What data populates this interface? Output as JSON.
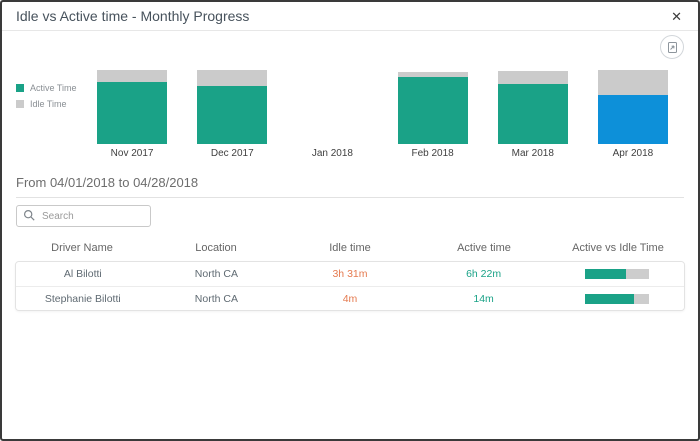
{
  "dialog": {
    "title": "Idle vs Active time - Monthly Progress",
    "close_glyph": "✕"
  },
  "colors": {
    "active_teal": "#1aa287",
    "idle_gray": "#cbcbcb",
    "selected_blue": "#0d90d9",
    "idle_text_orange": "#e57a4f"
  },
  "chart_data": {
    "type": "bar",
    "stacked": true,
    "orientation": "vertical",
    "axis_labels_shown": false,
    "legend_position": "left",
    "categories": [
      "Nov 2017",
      "Dec 2017",
      "Jan 2018",
      "Feb 2018",
      "Mar 2018",
      "Apr 2018"
    ],
    "series": [
      {
        "name": "Active Time",
        "color": "#1aa287",
        "values": [
          62,
          58,
          0,
          67,
          60,
          49
        ]
      },
      {
        "name": "Idle Time",
        "color": "#cbcbcb",
        "values": [
          12,
          16,
          0,
          5,
          13,
          25
        ]
      }
    ],
    "value_unit": "relative-height",
    "highlighted_category": "Apr 2018",
    "highlight_color": "#0d90d9"
  },
  "period": {
    "label": "From 04/01/2018 to 04/28/2018"
  },
  "search": {
    "placeholder": "Search"
  },
  "table": {
    "columns": [
      "Driver Name",
      "Location",
      "Idle time",
      "Active time",
      "Active vs Idle Time"
    ],
    "rows": [
      {
        "driver": "Al Bilotti",
        "location": "North CA",
        "idle": "3h 31m",
        "active": "6h 22m",
        "active_pct": 64
      },
      {
        "driver": "Stephanie Bilotti",
        "location": "North CA",
        "idle": "4m",
        "active": "14m",
        "active_pct": 77
      }
    ]
  }
}
